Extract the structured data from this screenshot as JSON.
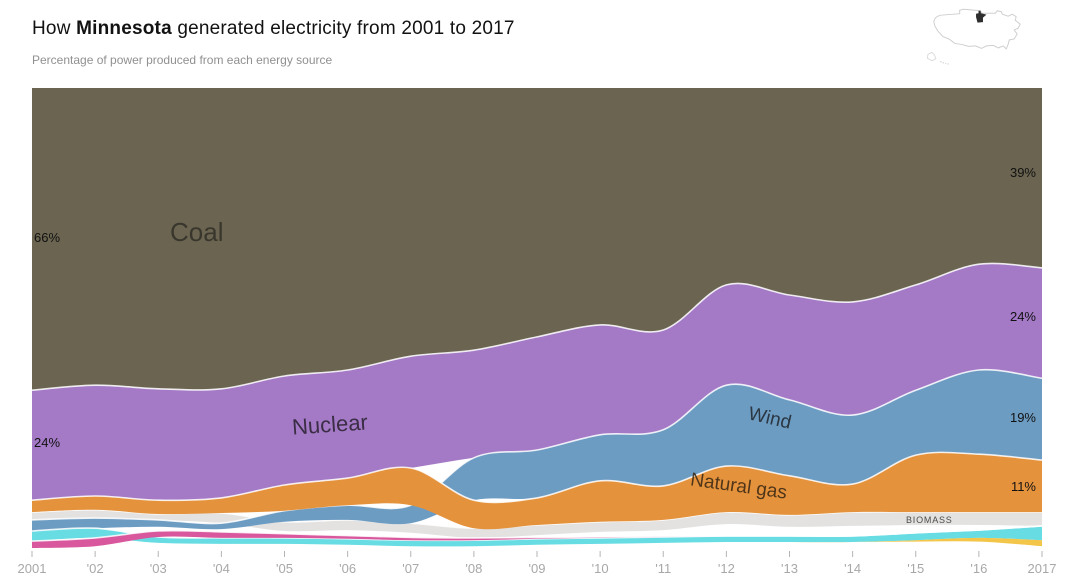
{
  "header": {
    "title_prefix": "How ",
    "title_state": "Minnesota",
    "title_suffix": " generated electricity from 2001 to 2017",
    "subtitle": "Percentage of power produced from each energy source",
    "map_icon": "us-map-with-minnesota-highlighted"
  },
  "chart_data": {
    "type": "area",
    "variant": "streamgraph-stacked-percentage",
    "title": "How Minnesota generated electricity from 2001 to 2017",
    "xlabel": "",
    "ylabel": "Percentage of power produced from each energy source",
    "grid": false,
    "legend_position": "labels-inside-areas",
    "x": [
      2001,
      2002,
      2003,
      2004,
      2005,
      2006,
      2007,
      2008,
      2009,
      2010,
      2011,
      2012,
      2013,
      2014,
      2015,
      2016,
      2017
    ],
    "x_tick_labels": [
      "2001",
      "'02",
      "'03",
      "'04",
      "'05",
      "'06",
      "'07",
      "'08",
      "'09",
      "'10",
      "'11",
      "'12",
      "'13",
      "'14",
      "'15",
      "'16",
      "2017"
    ],
    "series": [
      {
        "id": "coal",
        "name": "Coal",
        "color": "#6a6450",
        "values_pct": [
          66,
          65,
          65,
          65,
          63,
          61,
          58,
          57,
          54,
          52,
          53,
          43,
          45,
          47,
          43,
          38,
          39
        ],
        "top": [
          0,
          0,
          0,
          0,
          0,
          0,
          0,
          0,
          0,
          0,
          0,
          0,
          0,
          0,
          0,
          0,
          0
        ],
        "bottom": [
          65.7,
          64.6,
          65.4,
          65.4,
          62.6,
          61.3,
          58.3,
          57.0,
          54.1,
          51.5,
          52.6,
          42.8,
          45.0,
          46.5,
          42.8,
          38.3,
          39.1
        ],
        "stroke_top": false
      },
      {
        "id": "nuclear",
        "name": "Nuclear",
        "color": "#a47ac6",
        "values_pct": [
          24,
          24,
          24,
          24,
          24,
          24,
          24,
          23,
          25,
          24,
          22,
          22,
          23,
          25,
          23,
          23,
          24
        ],
        "top": [
          65.7,
          64.6,
          65.4,
          65.4,
          62.6,
          61.3,
          58.3,
          57.0,
          54.1,
          51.5,
          52.6,
          42.8,
          45.0,
          46.5,
          42.8,
          38.3,
          39.1
        ],
        "bottom": [
          89.6,
          88.7,
          89.6,
          89.1,
          86.3,
          84.8,
          82.6,
          80.4,
          78.7,
          75.4,
          74.3,
          64.6,
          67.8,
          71.1,
          65.7,
          61.3,
          63.1
        ],
        "stroke_top": true
      },
      {
        "id": "biomass",
        "name": "Biomass",
        "color": "#e3e2e0",
        "values_pct": [
          2,
          2,
          1,
          2,
          2,
          2,
          2,
          2,
          2,
          2,
          2,
          3,
          3,
          3,
          3,
          3,
          3
        ],
        "top": [
          92.2,
          91.7,
          92.6,
          92.4,
          94.3,
          93.9,
          94.6,
          95.7,
          95.0,
          94.3,
          93.9,
          92.2,
          92.8,
          92.2,
          92.2,
          92.2,
          92.2
        ],
        "bottom": [
          93.9,
          93.5,
          93.9,
          94.6,
          96.3,
          96.1,
          96.7,
          97.8,
          97.2,
          96.5,
          96.1,
          94.8,
          95.4,
          95.2,
          95.0,
          95.0,
          95.2
        ],
        "stroke_top": true
      },
      {
        "id": "wind",
        "name": "Wind",
        "color": "#6d9cc3",
        "values_pct": [
          2,
          2,
          2,
          1,
          2,
          3,
          4,
          9,
          10,
          10,
          12,
          18,
          17,
          15,
          14,
          18,
          19
        ],
        "top": [
          93.9,
          93.5,
          93.9,
          94.6,
          91.9,
          90.7,
          90.7,
          80.4,
          78.7,
          75.4,
          74.3,
          64.6,
          67.8,
          71.1,
          65.7,
          61.3,
          63.1
        ],
        "bottom": [
          96.3,
          95.7,
          95.4,
          95.9,
          94.3,
          93.9,
          94.6,
          89.6,
          89.1,
          85.4,
          86.5,
          82.2,
          84.3,
          86.1,
          79.8,
          79.6,
          80.9
        ],
        "stroke_top": true
      },
      {
        "id": "unlabeled-teal",
        "name": "Unlabeled (teal band)",
        "color": "#68dce3",
        "values_pct": [
          2,
          2,
          1,
          1,
          1,
          1,
          1,
          1,
          1,
          1,
          1,
          1,
          1,
          1,
          2,
          2,
          3
        ],
        "top": [
          96.3,
          95.7,
          97.6,
          97.8,
          97.8,
          98.0,
          98.3,
          98.3,
          98.0,
          97.8,
          97.6,
          97.4,
          97.4,
          97.4,
          96.7,
          96.1,
          95.2
        ],
        "bottom": [
          98.5,
          97.8,
          98.9,
          99.1,
          99.1,
          99.3,
          99.6,
          99.6,
          99.3,
          99.1,
          98.9,
          98.7,
          98.7,
          98.7,
          98.3,
          97.8,
          98.3
        ],
        "stroke_top": true
      },
      {
        "id": "unlabeled-pink",
        "name": "Unlabeled (pink band)",
        "color": "#d9579d",
        "values_pct": [
          2,
          2,
          1,
          1,
          1,
          1,
          1,
          1,
          0,
          0,
          0,
          0,
          0,
          0,
          0,
          0,
          0
        ],
        "top": [
          98.5,
          97.8,
          96.3,
          96.5,
          96.9,
          97.3,
          97.7,
          97.8,
          97.7,
          97.6,
          97.5,
          97.4,
          97.4,
          97.4,
          96.7,
          96.1,
          95.2
        ],
        "bottom": [
          100,
          99.6,
          97.6,
          97.8,
          97.8,
          98.0,
          98.3,
          98.3,
          98.0,
          97.8,
          97.6,
          97.4,
          97.4,
          97.4,
          96.7,
          96.1,
          95.2
        ],
        "stroke_top": true
      },
      {
        "id": "natural-gas",
        "name": "Natural gas",
        "color": "#e5923d",
        "values_pct": [
          3,
          3,
          3,
          3,
          6,
          6,
          8,
          6,
          6,
          9,
          7,
          10,
          9,
          6,
          12,
          13,
          11
        ],
        "top": [
          89.6,
          88.7,
          89.6,
          89.1,
          86.3,
          84.8,
          82.6,
          89.6,
          89.1,
          85.4,
          86.5,
          82.2,
          84.3,
          86.1,
          79.8,
          79.6,
          80.9
        ],
        "bottom": [
          92.2,
          91.7,
          92.6,
          92.4,
          91.9,
          90.7,
          90.7,
          95.7,
          95.0,
          94.3,
          93.9,
          92.2,
          92.8,
          92.2,
          92.2,
          92.2,
          92.2
        ],
        "stroke_top": true
      },
      {
        "id": "unlabeled-yellow",
        "name": "Unlabeled (yellow band)",
        "color": "#f3c64a",
        "values_pct": [
          0,
          0,
          0,
          0,
          0,
          0,
          0,
          0,
          0,
          0,
          0,
          0,
          0,
          0,
          0,
          1,
          1
        ],
        "top": [
          98.5,
          97.8,
          98.9,
          99.1,
          99.1,
          99.3,
          99.6,
          99.6,
          99.3,
          99.1,
          98.9,
          98.7,
          98.7,
          98.7,
          98.3,
          97.8,
          98.3
        ],
        "bottom": [
          98.5,
          97.8,
          98.9,
          99.1,
          99.1,
          99.3,
          99.6,
          99.6,
          99.3,
          99.1,
          98.9,
          98.7,
          98.7,
          98.7,
          98.6,
          98.6,
          99.6
        ],
        "stroke_top": false
      }
    ],
    "area_labels": {
      "coal": "Coal",
      "nuclear": "Nuclear",
      "wind": "Wind",
      "natural_gas": "Natural gas",
      "biomass": "BIOMASS"
    },
    "annotations": {
      "coal_start": "66%",
      "nuclear_start": "24%",
      "coal_end": "39%",
      "nuclear_end": "24%",
      "wind_end": "19%",
      "natural_gas_end": "11%"
    },
    "colors": {
      "separator_line": "rgba(255,255,255,0.85)",
      "tick": "#b5b5b5",
      "tick_label": "#a8a8a8",
      "title_text": "#121212",
      "subtitle_text": "#909090"
    },
    "ylim": [
      0,
      100
    ]
  }
}
